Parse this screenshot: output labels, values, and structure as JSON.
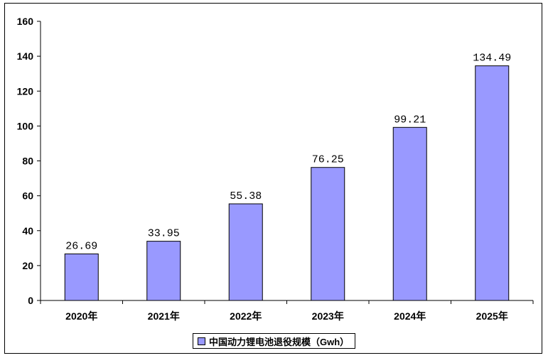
{
  "chart_data": {
    "type": "bar",
    "categories": [
      "2020年",
      "2021年",
      "2022年",
      "2023年",
      "2024年",
      "2025年"
    ],
    "series": [
      {
        "name": "中国动力锂电池退役规模（Gwh）",
        "values": [
          26.69,
          33.95,
          55.38,
          76.25,
          99.21,
          134.49
        ],
        "data_labels": [
          "26.69",
          "33.95",
          "55.38",
          "76.25",
          "99.21",
          "134.49"
        ],
        "color": "#9999ff"
      }
    ],
    "ylim": [
      0,
      160
    ],
    "yticks": [
      0,
      20,
      40,
      60,
      80,
      100,
      120,
      140,
      160
    ],
    "grid": false,
    "legend": "bottom"
  }
}
